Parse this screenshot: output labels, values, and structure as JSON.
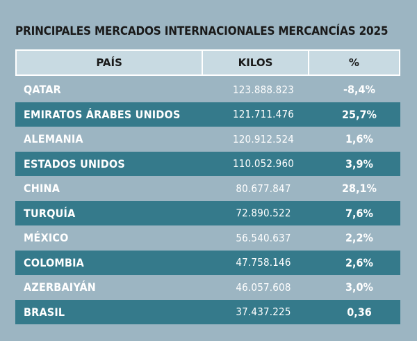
{
  "title": "PRINCIPALES MERCADOS INTERNACIONALES MERCANCÍAS 2025",
  "table": {
    "headers": {
      "country": "PAÍS",
      "kilos": "KILOS",
      "percent": "%"
    },
    "rows": [
      {
        "country": "QATAR",
        "kilos": "123.888.823",
        "percent": "-8,4%"
      },
      {
        "country": "EMIRATOS ÁRABES UNIDOS",
        "kilos": "121.711.476",
        "percent": "25,7%"
      },
      {
        "country": "ALEMANIA",
        "kilos": "120.912.524",
        "percent": "1,6%"
      },
      {
        "country": "ESTADOS UNIDOS",
        "kilos": "110.052.960",
        "percent": "3,9%"
      },
      {
        "country": "CHINA",
        "kilos": "80.677.847",
        "percent": "28,1%"
      },
      {
        "country": "TURQUÍA",
        "kilos": "72.890.522",
        "percent": "7,6%"
      },
      {
        "country": "MÉXICO",
        "kilos": "56.540.637",
        "percent": "2,2%"
      },
      {
        "country": "COLOMBIA",
        "kilos": "47.758.146",
        "percent": "2,6%"
      },
      {
        "country": "AZERBAIYÁN",
        "kilos": "46.057.608",
        "percent": "3,0%"
      },
      {
        "country": "BRASIL",
        "kilos": "37.437.225",
        "percent": "0,36"
      }
    ]
  },
  "colors": {
    "background": "#9cb5c2",
    "header_fill": "#c8dae2",
    "row_stripe": "#357a8b",
    "text_light": "#ffffff",
    "text_dark": "#1a1a1a"
  }
}
